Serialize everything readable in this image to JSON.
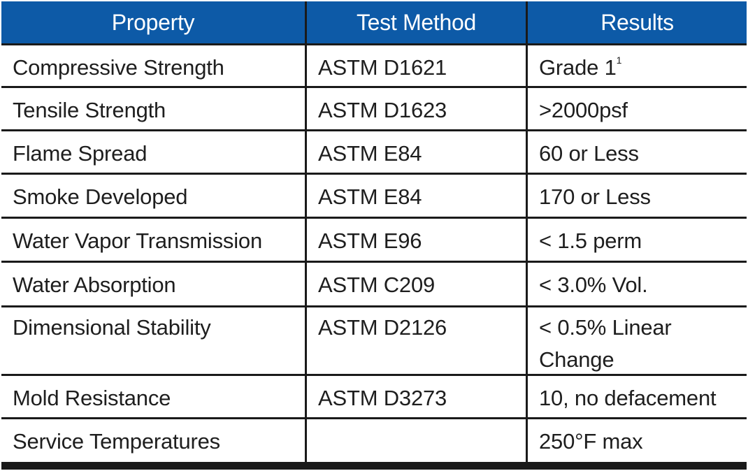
{
  "colors": {
    "header_bg": "#0d5aa7",
    "header_text": "#ffffff",
    "grid": "#1a1a1a",
    "body_text": "#1e1e1e"
  },
  "headers": [
    "Property",
    "Test Method",
    "Results"
  ],
  "rows": [
    {
      "property": "Compressive Strength",
      "method": "ASTM D1621",
      "result": "Grade 1",
      "result_sup": "1"
    },
    {
      "property": "Tensile Strength",
      "method": "ASTM D1623",
      "result": ">2000psf"
    },
    {
      "property": "Flame Spread",
      "method": "ASTM E84",
      "result": "60 or Less"
    },
    {
      "property": "Smoke Developed",
      "method": "ASTM E84",
      "result": "170 or Less"
    },
    {
      "property": "Water Vapor Transmission",
      "method": "ASTM E96",
      "result": "< 1.5 perm"
    },
    {
      "property": "Water Absorption",
      "method": "ASTM C209",
      "result": "< 3.0% Vol."
    },
    {
      "property": "Dimensional Stability",
      "method": "ASTM D2126",
      "result": "< 0.5% Linear Change"
    },
    {
      "property": "Mold Resistance",
      "method": "ASTM D3273",
      "result": "10, no defacement"
    },
    {
      "property": "Service Temperatures",
      "method": "",
      "result": "250°F max"
    }
  ]
}
